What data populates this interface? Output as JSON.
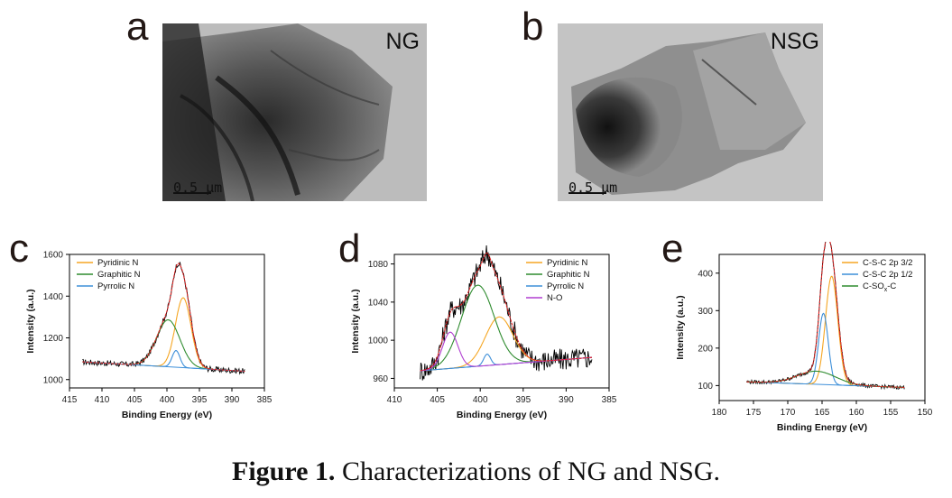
{
  "panels": {
    "a": {
      "letter": "a",
      "sample": "NG",
      "scale": "0.5 μm"
    },
    "b": {
      "letter": "b",
      "sample": "NSG",
      "scale": "0.5 μm"
    },
    "c": {
      "letter": "c"
    },
    "d": {
      "letter": "d"
    },
    "e": {
      "letter": "e"
    }
  },
  "caption": {
    "label": "Figure 1.",
    "text": " Characterizations of NG and NSG."
  },
  "colors": {
    "raw": "#000000",
    "fit": "#e02020",
    "orange": "#f5a623",
    "green": "#2e8b2e",
    "blue": "#3d8fd9",
    "magenta": "#b03fd0",
    "baseline": "#3d8fd9"
  },
  "chart_data": [
    {
      "id": "c",
      "type": "line",
      "xlabel": "Binding Energy (eV)",
      "ylabel": "Intensity (a.u.)",
      "xlim": [
        415,
        385
      ],
      "ylim": [
        960,
        1600
      ],
      "xticks": [
        415,
        410,
        405,
        400,
        395,
        390,
        385
      ],
      "yticks": [
        1000,
        1200,
        1400,
        1600
      ],
      "legend_position": "top-left",
      "series": [
        {
          "name": "Pyridinic N",
          "color": "orange",
          "peaks": [
            {
              "center": 397.5,
              "height": 335,
              "width": 1.2
            }
          ],
          "baseline": true
        },
        {
          "name": "Graphitic N",
          "color": "green",
          "peaks": [
            {
              "center": 399.8,
              "height": 225,
              "width": 1.8
            }
          ],
          "baseline": true
        },
        {
          "name": "Pyrrolic N",
          "color": "blue",
          "peaks": [
            {
              "center": 398.6,
              "height": 80,
              "width": 0.6
            }
          ],
          "baseline": true
        }
      ],
      "baseline": {
        "x": [
          413,
          388
        ],
        "y": [
          1085,
          1040
        ]
      },
      "noise": 14
    },
    {
      "id": "d",
      "type": "line",
      "xlabel": "Binding Energy (eV)",
      "ylabel": "Intensity (a.u.)",
      "xlim": [
        410,
        385
      ],
      "ylim": [
        950,
        1090
      ],
      "xticks": [
        410,
        405,
        400,
        395,
        390,
        385
      ],
      "yticks": [
        960,
        1000,
        1040,
        1080
      ],
      "legend_position": "top-right",
      "series": [
        {
          "name": "Pyridinic N",
          "color": "orange",
          "peaks": [
            {
              "center": 397.8,
              "height": 50,
              "width": 1.6
            }
          ],
          "baseline": true
        },
        {
          "name": "Graphitic N",
          "color": "green",
          "peaks": [
            {
              "center": 400.3,
              "height": 85,
              "width": 1.9
            }
          ],
          "baseline": true
        },
        {
          "name": "Pyrrolic N",
          "color": "blue",
          "peaks": [
            {
              "center": 399.2,
              "height": 12,
              "width": 0.4
            }
          ],
          "baseline": true
        },
        {
          "name": "N-O",
          "color": "magenta",
          "peaks": [
            {
              "center": 403.5,
              "height": 38,
              "width": 0.9
            }
          ],
          "baseline": true
        }
      ],
      "baseline": {
        "x": [
          407,
          387
        ],
        "y": [
          968,
          982
        ]
      },
      "noise": 12
    },
    {
      "id": "e",
      "type": "line",
      "xlabel": "Binding Energy (eV)",
      "ylabel": "Intensity (a.u.)",
      "xlim": [
        180,
        150
      ],
      "ylim": [
        60,
        450
      ],
      "xticks": [
        180,
        175,
        170,
        165,
        160,
        155,
        150
      ],
      "yticks": [
        100,
        200,
        300,
        400
      ],
      "legend_position": "top-right",
      "series": [
        {
          "name": "C-S-C 2p 3/2",
          "color": "orange",
          "peaks": [
            {
              "center": 163.6,
              "height": 290,
              "width": 0.9
            }
          ],
          "baseline": true
        },
        {
          "name": "C-S-C 2p 1/2",
          "color": "blue",
          "peaks": [
            {
              "center": 164.8,
              "height": 190,
              "width": 0.7
            }
          ],
          "baseline": true
        },
        {
          "name": "C-SOx-C",
          "label_main": "C-SO",
          "label_sub": "x",
          "label_tail": "-C",
          "color": "green",
          "peaks": [
            {
              "center": 165.8,
              "height": 35,
              "width": 2.8
            }
          ],
          "baseline": true
        }
      ],
      "baseline": {
        "x": [
          176,
          153
        ],
        "y": [
          110,
          95
        ]
      },
      "noise": 5
    }
  ]
}
